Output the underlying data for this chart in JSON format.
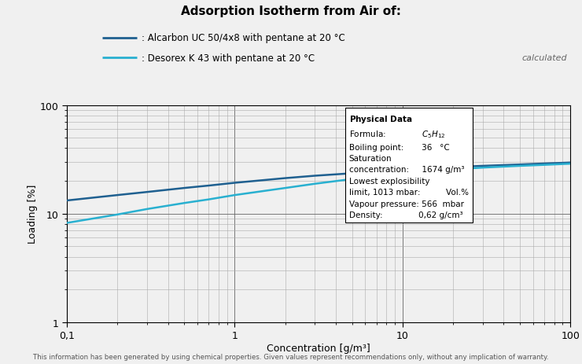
{
  "title": "Adsorption Isotherm from Air of:",
  "legend_alcarbon": ": Alcarbon UC 50/4x8 with pentane at 20 °C",
  "legend_desorex": ": Desorex K 43 with pentane at 20 °C",
  "xlabel": "Concentration [g/m³]",
  "ylabel": "Loading [%]",
  "calculated_label": "calculated",
  "footer": "This information has been generated by using chemical properties. Given values represent recommendations only, without any implication of warranty.",
  "xlim": [
    0.1,
    100
  ],
  "ylim": [
    1,
    100
  ],
  "color_alcarbon": "#1f6090",
  "color_desorex": "#29b0d0",
  "background_color": "#f0f0f0",
  "alcarbon_x": [
    0.1,
    0.2,
    0.3,
    0.5,
    0.7,
    1.0,
    2.0,
    3.0,
    5.0,
    7.0,
    10.0,
    20.0,
    30.0,
    50.0,
    70.0,
    100.0
  ],
  "alcarbon_y": [
    13.2,
    14.8,
    15.8,
    17.2,
    18.1,
    19.2,
    21.2,
    22.3,
    23.5,
    24.3,
    25.2,
    26.8,
    27.5,
    28.3,
    28.9,
    29.5
  ],
  "desorex_x": [
    0.1,
    0.2,
    0.3,
    0.5,
    0.7,
    1.0,
    2.0,
    3.0,
    5.0,
    7.0,
    10.0,
    20.0,
    30.0,
    50.0,
    70.0,
    100.0
  ],
  "desorex_y": [
    8.2,
    9.8,
    11.0,
    12.5,
    13.5,
    14.8,
    17.2,
    18.8,
    20.8,
    22.0,
    23.2,
    25.5,
    26.5,
    27.5,
    28.1,
    28.8
  ],
  "pd_formula": "C₅H₁₂",
  "pd_bp": "36",
  "pd_bp_unit": "°C",
  "pd_sat": "1674",
  "pd_sat_unit": "g/m³",
  "pd_lel_unit": "Vol.%",
  "pd_vp": "566",
  "pd_vp_unit": "mbar",
  "pd_den": "0,62",
  "pd_den_unit": "g/cm³"
}
